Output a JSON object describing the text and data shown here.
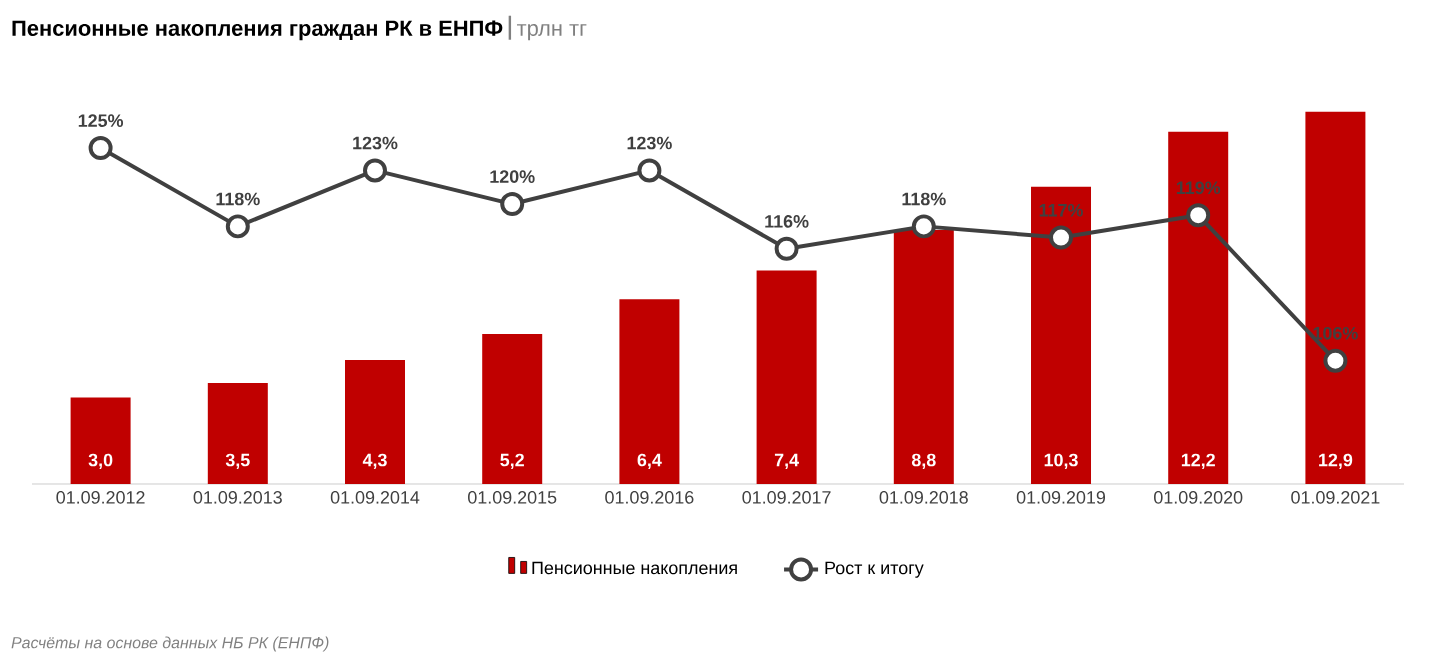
{
  "chart_data": {
    "type": "bar",
    "title": "Пенсионные накопления граждан РК в ЕНПФ",
    "subtitle": "трлн тг",
    "categories": [
      "01.09.2012",
      "01.09.2013",
      "01.09.2014",
      "01.09.2015",
      "01.09.2016",
      "01.09.2017",
      "01.09.2018",
      "01.09.2019",
      "01.09.2020",
      "01.09.2021"
    ],
    "series": [
      {
        "name": "Пенсионные накопления",
        "color": "#c00000",
        "values": [
          3.0,
          3.5,
          4.3,
          5.2,
          6.4,
          7.4,
          8.8,
          10.3,
          12.2,
          12.9
        ],
        "value_labels": [
          "3,0",
          "3,5",
          "4,3",
          "5,2",
          "6,4",
          "7,4",
          "8,8",
          "10,3",
          "12,2",
          "12,9"
        ]
      },
      {
        "name": "Рост к итогу",
        "type": "line",
        "axis": "y2",
        "color": "#404040",
        "marker": "circle",
        "values": [
          125,
          118,
          123,
          120,
          123,
          116,
          118,
          117,
          119,
          106
        ],
        "value_labels": [
          "125%",
          "118%",
          "123%",
          "120%",
          "123%",
          "116%",
          "118%",
          "117%",
          "119%",
          "106%"
        ]
      }
    ],
    "legend": "bottom",
    "grid": false,
    "annotations": [
      "Расчёты на основе данных НБ РК (ЕНПФ)"
    ]
  }
}
